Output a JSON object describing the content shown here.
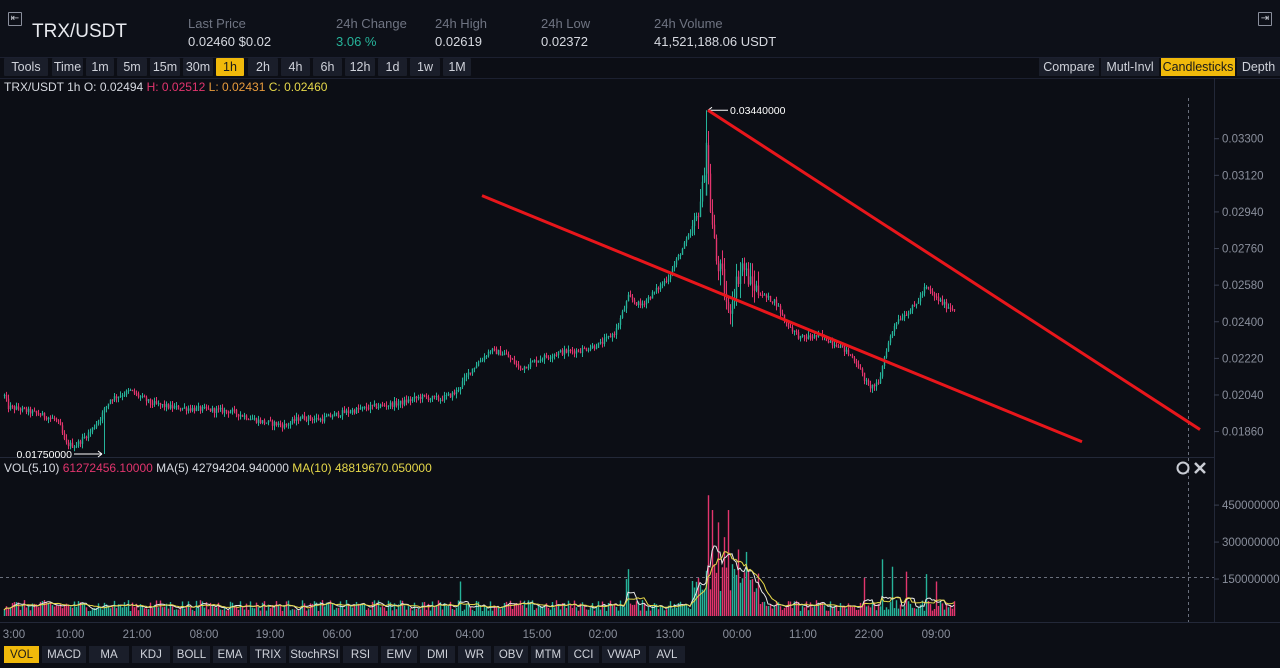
{
  "header": {
    "pair": "TRX/USDT",
    "stats": [
      {
        "label": "Last Price",
        "value": "0.02460 $0.02",
        "color": "normal"
      },
      {
        "label": "24h Change",
        "value": "3.06 %",
        "color": "green"
      },
      {
        "label": "24h High",
        "value": "0.02619",
        "color": "normal"
      },
      {
        "label": "24h Low",
        "value": "0.02372",
        "color": "normal"
      },
      {
        "label": "24h Volume",
        "value": "41,521,188.06 USDT",
        "color": "normal"
      }
    ]
  },
  "toolbar": {
    "intervals": [
      "Tools",
      "Time",
      "1m",
      "5m",
      "15m",
      "30m",
      "1h",
      "2h",
      "4h",
      "6h",
      "12h",
      "1d",
      "1w",
      "1M"
    ],
    "active_interval": "1h",
    "views": [
      "Compare",
      "Mutl-Invl",
      "Candlesticks",
      "Depth"
    ],
    "active_view": "Candlesticks"
  },
  "ohlc_legend": {
    "symbol": "TRX/USDT 1h",
    "o_label": "O:",
    "o": "0.02494",
    "h_label": "H:",
    "h": "0.02512",
    "l_label": "L:",
    "l": "0.02431",
    "c_label": "C:",
    "c": "0.02460"
  },
  "vol_legend": {
    "label": "VOL(5,10)",
    "vol": "61272456.10000",
    "ma5_label": "MA(5)",
    "ma5": "42794204.940000",
    "ma10_label": "MA(10)",
    "ma10": "48819670.050000"
  },
  "annotations": {
    "max_label": "0.03440000",
    "min_label": "0.01750000"
  },
  "indicators": [
    "VOL",
    "MACD",
    "MA",
    "KDJ",
    "BOLL",
    "EMA",
    "TRIX",
    "StochRSI",
    "RSI",
    "EMV",
    "DMI",
    "WR",
    "OBV",
    "MTM",
    "CCI",
    "VWAP",
    "AVL"
  ],
  "active_indicator": "VOL",
  "colors": {
    "up": "#26b39a",
    "down": "#e3356e",
    "accent": "#f0b90b",
    "trend": "#e8161b",
    "bg": "#0c0e15"
  },
  "chart_data": {
    "type": "candlestick",
    "price_axis": [
      "0.03300",
      "0.03120",
      "0.02940",
      "0.02760",
      "0.02580",
      "0.02400",
      "0.02220",
      "0.02040",
      "0.01860"
    ],
    "price_ylim": [
      0.0174,
      0.0351
    ],
    "volume_axis": [
      "450000000",
      "300000000",
      "150000000"
    ],
    "volume_ylim": [
      0,
      560000000
    ],
    "time_axis": [
      "3:00",
      "10:00",
      "21:00",
      "08:00",
      "19:00",
      "06:00",
      "17:00",
      "04:00",
      "15:00",
      "02:00",
      "13:00",
      "00:00",
      "11:00",
      "22:00",
      "09:00"
    ],
    "price_anchors": [
      [
        0,
        0.0203
      ],
      [
        3,
        0.0205
      ],
      [
        8,
        0.0198
      ],
      [
        20,
        0.0197
      ],
      [
        35,
        0.0195
      ],
      [
        55,
        0.0192
      ],
      [
        60,
        0.0188
      ],
      [
        65,
        0.018
      ],
      [
        75,
        0.0179
      ],
      [
        90,
        0.0186
      ],
      [
        100,
        0.0193
      ],
      [
        110,
        0.0202
      ],
      [
        130,
        0.0206
      ],
      [
        150,
        0.02
      ],
      [
        170,
        0.0198
      ],
      [
        200,
        0.0197
      ],
      [
        230,
        0.0196
      ],
      [
        260,
        0.0191
      ],
      [
        285,
        0.0189
      ],
      [
        300,
        0.0193
      ],
      [
        320,
        0.0192
      ],
      [
        340,
        0.0195
      ],
      [
        370,
        0.0198
      ],
      [
        400,
        0.02
      ],
      [
        420,
        0.0203
      ],
      [
        440,
        0.0202
      ],
      [
        455,
        0.0205
      ],
      [
        470,
        0.0216
      ],
      [
        490,
        0.0226
      ],
      [
        505,
        0.0224
      ],
      [
        520,
        0.0217
      ],
      [
        540,
        0.0222
      ],
      [
        560,
        0.0225
      ],
      [
        580,
        0.0226
      ],
      [
        600,
        0.0229
      ],
      [
        615,
        0.0235
      ],
      [
        628,
        0.0252
      ],
      [
        640,
        0.0248
      ],
      [
        655,
        0.0255
      ],
      [
        668,
        0.0262
      ],
      [
        680,
        0.0274
      ],
      [
        695,
        0.0288
      ],
      [
        702,
        0.0305
      ],
      [
        706,
        0.0328
      ],
      [
        710,
        0.0296
      ],
      [
        716,
        0.027
      ],
      [
        722,
        0.0262
      ],
      [
        728,
        0.0243
      ],
      [
        735,
        0.0258
      ],
      [
        742,
        0.0268
      ],
      [
        750,
        0.0259
      ],
      [
        765,
        0.0252
      ],
      [
        775,
        0.025
      ],
      [
        785,
        0.024
      ],
      [
        800,
        0.0232
      ],
      [
        820,
        0.0233
      ],
      [
        840,
        0.0228
      ],
      [
        855,
        0.0221
      ],
      [
        868,
        0.0208
      ],
      [
        878,
        0.0209
      ],
      [
        885,
        0.0225
      ],
      [
        895,
        0.024
      ],
      [
        905,
        0.0244
      ],
      [
        915,
        0.0248
      ],
      [
        925,
        0.0257
      ],
      [
        935,
        0.0252
      ],
      [
        945,
        0.0248
      ],
      [
        955,
        0.0246
      ]
    ],
    "max": {
      "value": 0.0344
    },
    "min": {
      "value": 0.0175
    },
    "volume_spikes": [
      [
        708,
        490000000
      ],
      [
        712,
        430000000
      ],
      [
        717,
        380000000
      ],
      [
        723,
        320000000
      ],
      [
        728,
        430000000
      ],
      [
        738,
        270000000
      ],
      [
        745,
        260000000
      ],
      [
        628,
        190000000
      ],
      [
        864,
        155000000
      ],
      [
        882,
        230000000
      ],
      [
        892,
        200000000
      ],
      [
        905,
        180000000
      ],
      [
        925,
        170000000
      ],
      [
        935,
        140000000
      ],
      [
        460,
        140000000
      ],
      [
        625,
        150000000
      ]
    ],
    "trendlines": [
      {
        "p1": [
          482,
          0.0302
        ],
        "p2": [
          1082,
          0.0181
        ]
      },
      {
        "p1": [
          708,
          0.0344
        ],
        "p2": [
          1200,
          0.0187
        ]
      }
    ]
  }
}
